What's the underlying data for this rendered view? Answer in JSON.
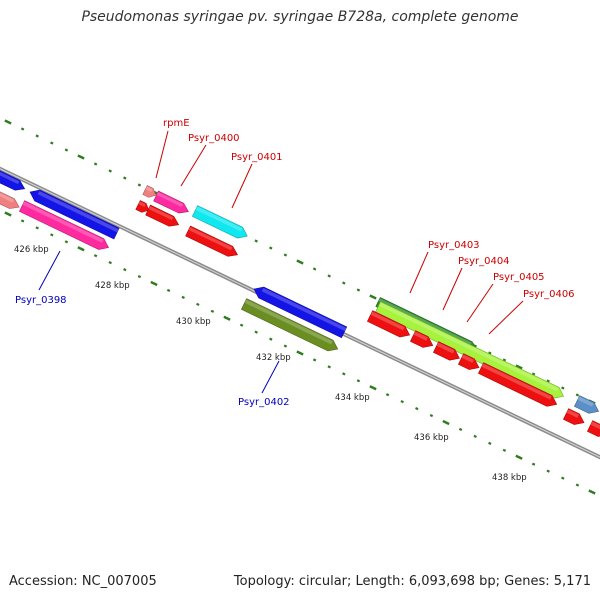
{
  "title": "Pseudomonas syringae pv. syringae B728a, complete genome",
  "footer": {
    "accession": "Accession: NC_007005",
    "summary": "Topology: circular; Length: 6,093,698 bp; Genes: 5,171"
  },
  "colors": {
    "backbone": "#8c8c8c",
    "ticks": "#2e7d1e",
    "tick_label": "#222222",
    "label_red": "#cc0000",
    "label_blue": "#0000bb"
  },
  "kbp_labels": [
    "426 kbp",
    "428 kbp",
    "430 kbp",
    "432 kbp",
    "434 kbp",
    "436 kbp",
    "438 kbp"
  ],
  "gene_labels": [
    {
      "text": "rpmE",
      "color": "red"
    },
    {
      "text": "Psyr_0400",
      "color": "red"
    },
    {
      "text": "Psyr_0401",
      "color": "red"
    },
    {
      "text": "Psyr_0398",
      "color": "blue"
    },
    {
      "text": "Psyr_0402",
      "color": "blue"
    },
    {
      "text": "Psyr_0403",
      "color": "red"
    },
    {
      "text": "Psyr_0404",
      "color": "red"
    },
    {
      "text": "Psyr_0405",
      "color": "red"
    },
    {
      "text": "Psyr_0406",
      "color": "red"
    }
  ],
  "features": [
    {
      "name": "blue-left-edge",
      "color": "#1414e6",
      "dir": "forward"
    },
    {
      "name": "salmon-left-edge",
      "color": "#f08080",
      "dir": "forward"
    },
    {
      "name": "blue-gene-a",
      "color": "#1414e6",
      "dir": "reverse"
    },
    {
      "name": "pink-gene-psyr0398",
      "color": "#ff2aa0",
      "dir": "forward"
    },
    {
      "name": "salmon-small-rpmE",
      "color": "#f08080",
      "dir": "forward"
    },
    {
      "name": "pink-gene-psyr0400",
      "color": "#ff2aa0",
      "dir": "forward"
    },
    {
      "name": "red-small-a",
      "color": "#ee1010",
      "dir": "forward"
    },
    {
      "name": "red-gene-b",
      "color": "#ee1010",
      "dir": "forward"
    },
    {
      "name": "cyan-gene-psyr0401",
      "color": "#10e8f0",
      "dir": "forward"
    },
    {
      "name": "red-gene-c",
      "color": "#ee1010",
      "dir": "forward"
    },
    {
      "name": "blue-gene-d",
      "color": "#1414e6",
      "dir": "reverse"
    },
    {
      "name": "olive-gene-psyr0402",
      "color": "#6b8e23",
      "dir": "forward"
    },
    {
      "name": "darkgreen-gene-psyr0403",
      "color": "#2e8b2e",
      "dir": "forward"
    },
    {
      "name": "lime-gene-psyr0404",
      "color": "#a6f23c",
      "dir": "forward"
    },
    {
      "name": "steelblue-gene-edge",
      "color": "#5b8fc8",
      "dir": "forward"
    },
    {
      "name": "red-gene-e",
      "color": "#ee1010",
      "dir": "forward"
    },
    {
      "name": "red-gene-f",
      "color": "#ee1010",
      "dir": "forward"
    },
    {
      "name": "red-gene-g",
      "color": "#ee1010",
      "dir": "forward"
    },
    {
      "name": "red-gene-h",
      "color": "#ee1010",
      "dir": "forward"
    },
    {
      "name": "red-gene-i",
      "color": "#ee1010",
      "dir": "forward"
    },
    {
      "name": "red-gene-j",
      "color": "#ee1010",
      "dir": "forward"
    },
    {
      "name": "red-gene-edge",
      "color": "#ee1010",
      "dir": "forward"
    }
  ]
}
